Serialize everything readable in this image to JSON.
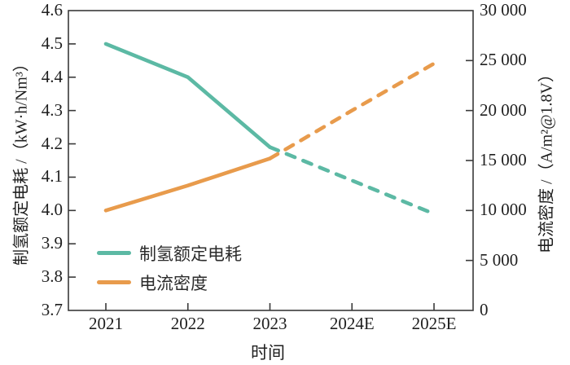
{
  "chart_data": {
    "type": "line",
    "title": "",
    "categories": [
      "2021",
      "2022",
      "2023",
      "2024E",
      "2025E"
    ],
    "xlabel": "时间",
    "left_axis": {
      "label": "制氢额定电耗 /（kW·h/Nm³）",
      "min": 3.7,
      "max": 4.6,
      "tick_values": [
        3.7,
        3.8,
        3.9,
        4.0,
        4.1,
        4.2,
        4.3,
        4.4,
        4.5,
        4.6
      ],
      "tick_labels": [
        "3.7",
        "3.8",
        "3.9",
        "4.0",
        "4.1",
        "4.2",
        "4.3",
        "4.4",
        "4.5",
        "4.6"
      ]
    },
    "right_axis": {
      "label": "电流密度 /（A/m²@1.8V）",
      "min": 0,
      "max": 30000,
      "tick_values": [
        0,
        5000,
        10000,
        15000,
        20000,
        25000,
        30000
      ],
      "tick_labels": [
        "0",
        "5 000",
        "10 000",
        "15 000",
        "20 000",
        "25 000",
        "30 000"
      ]
    },
    "series": [
      {
        "name": "制氢额定电耗",
        "axis": "left",
        "color": "#5cb9a4",
        "values": [
          4.5,
          4.4,
          4.19,
          4.09,
          3.99
        ],
        "solid_through_index": 2
      },
      {
        "name": "电流密度",
        "axis": "right",
        "color": "#e89b4c",
        "values": [
          10000,
          12500,
          15200,
          20000,
          24700
        ],
        "solid_through_index": 2
      }
    ],
    "legend_position": "lower-left",
    "grid": false,
    "axis_color": "#3a3a3a"
  }
}
